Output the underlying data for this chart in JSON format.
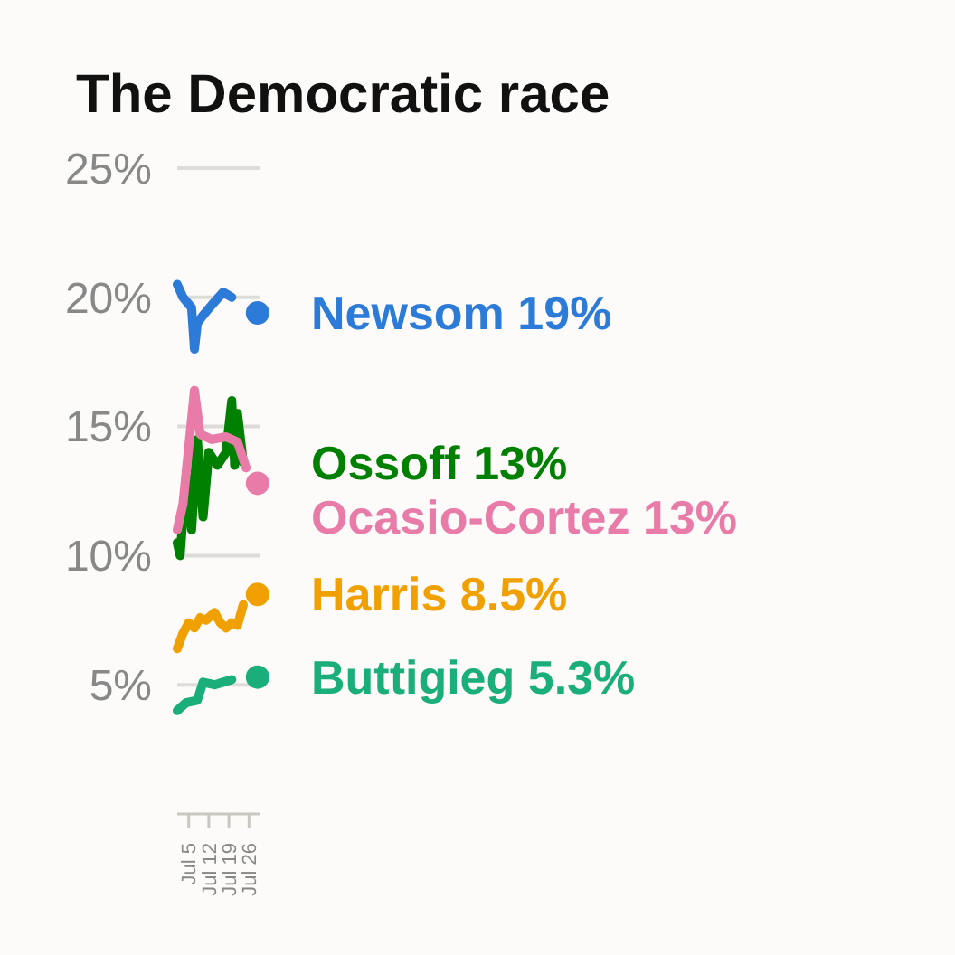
{
  "chart_data": {
    "type": "line",
    "title": "The Democratic race",
    "xlim": [
      "--07-01",
      "--07-30"
    ],
    "xticks": [
      {
        "value": "--07-05",
        "label": "Jul 5"
      },
      {
        "value": "--07-12",
        "label": "Jul 12"
      },
      {
        "value": "--07-19",
        "label": "Jul 19"
      },
      {
        "value": "--07-26",
        "label": "Jul 26"
      }
    ],
    "ylim": [
      0,
      25
    ],
    "yticks": [
      {
        "value": 5,
        "label": "5%"
      },
      {
        "value": 10,
        "label": "10%"
      },
      {
        "value": 15,
        "label": "15%"
      },
      {
        "value": 20,
        "label": "20%"
      },
      {
        "value": 25,
        "label": "25%"
      }
    ],
    "grid": "y",
    "line_style": "solid",
    "series": [
      {
        "color": "#2c7bd8",
        "x": [
          "--07-01",
          "--07-03",
          "--07-06",
          "--07-07",
          "--07-08",
          "--07-10",
          "--07-13",
          "--07-17",
          "--07-20"
        ],
        "values": [
          20.5,
          20.0,
          19.6,
          18.0,
          19.0,
          19.3,
          19.7,
          20.2,
          20.0
        ]
      },
      {
        "color": "#008000",
        "x": [
          "--07-01",
          "--07-02",
          "--07-03",
          "--07-05",
          "--07-06",
          "--07-08",
          "--07-10",
          "--07-12",
          "--07-15",
          "--07-18",
          "--07-20",
          "--07-21",
          "--07-22",
          "--07-24"
        ],
        "values": [
          10.5,
          10.0,
          11.5,
          13.0,
          11.0,
          14.5,
          11.5,
          14.0,
          13.5,
          14.0,
          16.0,
          13.5,
          15.5,
          13.6
        ]
      },
      {
        "color": "#e87ba8",
        "x": [
          "--07-01",
          "--07-03",
          "--07-07",
          "--07-09",
          "--07-13",
          "--07-18",
          "--07-22",
          "--07-25"
        ],
        "values": [
          11.0,
          12.0,
          16.4,
          14.7,
          14.5,
          14.6,
          14.4,
          13.4
        ]
      },
      {
        "color": "#f0a000",
        "x": [
          "--07-01",
          "--07-03",
          "--07-05",
          "--07-07",
          "--07-09",
          "--07-11",
          "--07-14",
          "--07-16",
          "--07-18",
          "--07-20",
          "--07-22",
          "--07-24"
        ],
        "values": [
          6.4,
          7.0,
          7.4,
          7.2,
          7.6,
          7.5,
          7.8,
          7.4,
          7.2,
          7.4,
          7.3,
          8.1
        ]
      },
      {
        "color": "#1aae7a",
        "x": [
          "--07-01",
          "--07-04",
          "--07-08",
          "--07-10",
          "--07-14",
          "--07-17",
          "--07-20"
        ],
        "values": [
          4.0,
          4.3,
          4.4,
          5.1,
          5.0,
          5.1,
          5.2
        ]
      },
      {
        "type": "scatter",
        "marker": "circle",
        "color": "#2c7bd8",
        "x": [
          "--07-29"
        ],
        "values": [
          19.4
        ]
      },
      {
        "type": "scatter",
        "marker": "circle",
        "color": "#e87ba8",
        "x": [
          "--07-29"
        ],
        "values": [
          12.8
        ]
      },
      {
        "type": "scatter",
        "marker": "circle",
        "color": "#f0a000",
        "x": [
          "--07-29"
        ],
        "values": [
          8.5
        ]
      },
      {
        "type": "scatter",
        "marker": "circle",
        "color": "#1aae7a",
        "x": [
          "--07-29"
        ],
        "values": [
          5.3
        ]
      }
    ],
    "annotations": [
      "Newsom 19%",
      "Ossoff 13%",
      "Ocasio-Cortez 13%",
      "Harris 8.5%",
      "Buttigieg 5.3%"
    ]
  }
}
